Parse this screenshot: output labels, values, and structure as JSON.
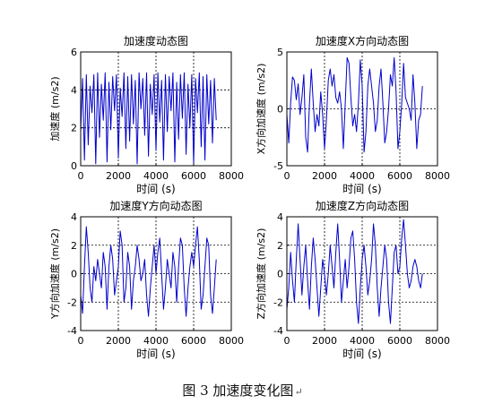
{
  "figure_caption": "图 3  加速度变化图",
  "caption_mark": "↵",
  "colors": {
    "line": "#0000cc",
    "axes": "#000000",
    "grid": "#000000"
  },
  "chart_data": [
    {
      "type": "line",
      "title": "加速度动态图",
      "xlabel": "时间 (s)",
      "ylabel": "加速度 (m/s2)",
      "xlim": [
        0,
        8000
      ],
      "ylim": [
        0,
        6
      ],
      "xticks": [
        0,
        2000,
        4000,
        6000,
        8000
      ],
      "yticks": [
        0,
        2,
        4,
        6
      ],
      "grid": true,
      "series": [
        {
          "x": [
            0,
            100,
            200,
            300,
            400,
            500,
            600,
            700,
            800,
            900,
            1000,
            1100,
            1200,
            1300,
            1400,
            1500,
            1600,
            1700,
            1800,
            1900,
            2000,
            2100,
            2200,
            2300,
            2400,
            2500,
            2600,
            2700,
            2800,
            2900,
            3000,
            3100,
            3200,
            3300,
            3400,
            3500,
            3600,
            3700,
            3800,
            3900,
            4000,
            4100,
            4200,
            4300,
            4400,
            4500,
            4600,
            4700,
            4800,
            4900,
            5000,
            5100,
            5200,
            5300,
            5400,
            5500,
            5600,
            5700,
            5800,
            5900,
            6000,
            6100,
            6200,
            6300,
            6400,
            6500,
            6600,
            6700,
            6800,
            6900,
            7000,
            7100,
            7200
          ],
          "values": [
            1.8,
            4.6,
            0.3,
            4.8,
            1.1,
            4.2,
            2.8,
            4.8,
            0.1,
            4.9,
            1.5,
            4.3,
            2.4,
            4.9,
            0.2,
            4.4,
            1.9,
            4.7,
            2.9,
            4.8,
            0.4,
            4.1,
            2.6,
            4.9,
            0.9,
            4.7,
            1.3,
            4.8,
            2.2,
            4.5,
            0.1,
            4.9,
            3.0,
            4.6,
            1.6,
            4.9,
            0.5,
            4.3,
            2.7,
            4.8,
            0.8,
            4.9,
            2.3,
            4.5,
            0.3,
            4.8,
            1.8,
            4.7,
            2.9,
            4.9,
            0.2,
            4.4,
            1.4,
            4.8,
            2.5,
            4.9,
            0.6,
            4.3,
            2.0,
            4.8,
            0.1,
            4.6,
            2.8,
            4.9,
            1.0,
            4.7,
            0.3,
            4.8,
            2.2,
            4.5,
            1.2,
            4.6,
            2.4
          ]
        }
      ]
    },
    {
      "type": "line",
      "title": "加速度X方向动态图",
      "xlabel": "时间 (s)",
      "ylabel": "X方向加速度 (m/s2)",
      "xlim": [
        0,
        8000
      ],
      "ylim": [
        -5,
        5
      ],
      "xticks": [
        0,
        2000,
        4000,
        6000,
        8000
      ],
      "yticks": [
        -5,
        0,
        5
      ],
      "grid": true,
      "series": [
        {
          "x": [
            0,
            100,
            200,
            300,
            400,
            500,
            600,
            700,
            800,
            900,
            1000,
            1100,
            1200,
            1300,
            1400,
            1500,
            1600,
            1700,
            1800,
            1900,
            2000,
            2100,
            2200,
            2300,
            2400,
            2500,
            2600,
            2700,
            2800,
            2900,
            3000,
            3100,
            3200,
            3300,
            3400,
            3500,
            3600,
            3700,
            3800,
            3900,
            4000,
            4100,
            4200,
            4300,
            4400,
            4500,
            4600,
            4700,
            4800,
            4900,
            5000,
            5100,
            5200,
            5300,
            5400,
            5500,
            5600,
            5700,
            5800,
            5900,
            6000,
            6100,
            6200,
            6300,
            6400,
            6500,
            6600,
            6700,
            6800,
            6900,
            7000,
            7100,
            7200
          ],
          "values": [
            -0.5,
            -3.0,
            0.5,
            2.8,
            2.5,
            0.8,
            2.2,
            -0.5,
            1.0,
            3.0,
            -2.5,
            -3.8,
            0.5,
            3.5,
            0.5,
            -2.0,
            -0.5,
            -1.5,
            1.5,
            -0.5,
            -3.5,
            -1.0,
            2.5,
            3.5,
            2.0,
            3.0,
            1.0,
            0.5,
            1.5,
            0.0,
            -3.5,
            0.5,
            4.5,
            4.0,
            1.0,
            -1.5,
            -0.5,
            -2.0,
            0.5,
            4.3,
            2.0,
            -3.8,
            -2.0,
            2.0,
            3.5,
            2.0,
            0.5,
            -2.0,
            -1.0,
            2.0,
            3.5,
            0.5,
            -3.0,
            -2.0,
            0.0,
            3.0,
            2.0,
            4.5,
            1.5,
            -3.5,
            -2.0,
            0.5,
            4.0,
            1.0,
            0.5,
            0.0,
            -1.0,
            3.0,
            0.5,
            -3.5,
            -1.0,
            -0.5,
            2.0
          ]
        }
      ]
    },
    {
      "type": "line",
      "title": "加速度Y方向动态图",
      "xlabel": "时间 (s)",
      "ylabel": "Y方向加速度 (m/s2)",
      "xlim": [
        0,
        8000
      ],
      "ylim": [
        -4,
        4
      ],
      "xticks": [
        0,
        2000,
        4000,
        6000,
        8000
      ],
      "yticks": [
        -4,
        -2,
        0,
        2,
        4
      ],
      "grid": true,
      "series": [
        {
          "x": [
            0,
            100,
            200,
            300,
            400,
            500,
            600,
            700,
            800,
            900,
            1000,
            1100,
            1200,
            1300,
            1400,
            1500,
            1600,
            1700,
            1800,
            1900,
            2000,
            2100,
            2200,
            2300,
            2400,
            2500,
            2600,
            2700,
            2800,
            2900,
            3000,
            3100,
            3200,
            3300,
            3400,
            3500,
            3600,
            3700,
            3800,
            3900,
            4000,
            4100,
            4200,
            4300,
            4400,
            4500,
            4600,
            4700,
            4800,
            4900,
            5000,
            5100,
            5200,
            5300,
            5400,
            5500,
            5600,
            5700,
            5800,
            5900,
            6000,
            6100,
            6200,
            6300,
            6400,
            6500,
            6600,
            6700,
            6800,
            6900,
            7000,
            7100,
            7200
          ],
          "values": [
            -1.5,
            -2.8,
            0.5,
            3.3,
            1.5,
            -1.0,
            -2.0,
            0.5,
            -0.5,
            1.0,
            0.0,
            -1.0,
            1.5,
            0.5,
            -2.5,
            0.5,
            2.0,
            1.0,
            -1.5,
            -0.5,
            0.5,
            3.0,
            2.0,
            -2.0,
            -1.0,
            1.5,
            0.5,
            -2.5,
            -0.5,
            0.5,
            2.0,
            1.0,
            -0.5,
            0.0,
            1.0,
            -1.5,
            -3.0,
            -1.0,
            0.5,
            2.0,
            0.0,
            1.5,
            2.5,
            0.0,
            -2.5,
            -1.0,
            1.0,
            0.0,
            -1.0,
            1.5,
            0.5,
            -2.0,
            0.5,
            2.5,
            2.0,
            -1.0,
            -3.0,
            -1.0,
            0.5,
            1.5,
            0.5,
            2.0,
            3.3,
            1.0,
            -2.5,
            -1.5,
            0.5,
            2.5,
            2.0,
            -1.5,
            -2.8,
            -1.0,
            1.0
          ]
        }
      ]
    },
    {
      "type": "line",
      "title": "加速度Z方向动态图",
      "xlabel": "时间 (s)",
      "ylabel": "Z方向加速度 (m/s2)",
      "xlim": [
        0,
        8000
      ],
      "ylim": [
        -4,
        4
      ],
      "xticks": [
        0,
        2000,
        4000,
        6000,
        8000
      ],
      "yticks": [
        -4,
        -2,
        0,
        2,
        4
      ],
      "grid": true,
      "series": [
        {
          "x": [
            0,
            100,
            200,
            300,
            400,
            500,
            600,
            700,
            800,
            900,
            1000,
            1100,
            1200,
            1300,
            1400,
            1500,
            1600,
            1700,
            1800,
            1900,
            2000,
            2100,
            2200,
            2300,
            2400,
            2500,
            2600,
            2700,
            2800,
            2900,
            3000,
            3100,
            3200,
            3300,
            3400,
            3500,
            3600,
            3700,
            3800,
            3900,
            4000,
            4100,
            4200,
            4300,
            4400,
            4500,
            4600,
            4700,
            4800,
            4900,
            5000,
            5100,
            5200,
            5300,
            5400,
            5500,
            5600,
            5700,
            5800,
            5900,
            6000,
            6100,
            6200,
            6300,
            6400,
            6500,
            6600,
            6700,
            6800,
            6900,
            7000,
            7100,
            7200
          ],
          "values": [
            -2.5,
            -1.0,
            1.5,
            -0.5,
            -2.0,
            1.0,
            3.5,
            1.0,
            -1.5,
            0.5,
            2.0,
            -0.5,
            -2.5,
            0.5,
            2.5,
            1.0,
            -1.0,
            -3.0,
            -1.0,
            1.0,
            0.0,
            -1.5,
            0.0,
            2.0,
            0.5,
            -1.0,
            1.5,
            3.5,
            1.0,
            -2.0,
            -0.5,
            1.0,
            -1.0,
            0.5,
            2.5,
            3.0,
            1.0,
            -2.0,
            -3.5,
            -1.0,
            1.0,
            2.0,
            0.5,
            -1.5,
            -0.5,
            1.0,
            3.5,
            2.0,
            -1.0,
            -3.0,
            -1.0,
            0.5,
            2.0,
            1.0,
            -2.0,
            -3.5,
            -1.0,
            1.5,
            2.0,
            0.0,
            0.5,
            2.5,
            3.8,
            2.0,
            0.0,
            -1.0,
            -0.5,
            0.5,
            1.0,
            0.5,
            -0.5,
            -1.0,
            0.0
          ]
        }
      ]
    }
  ]
}
